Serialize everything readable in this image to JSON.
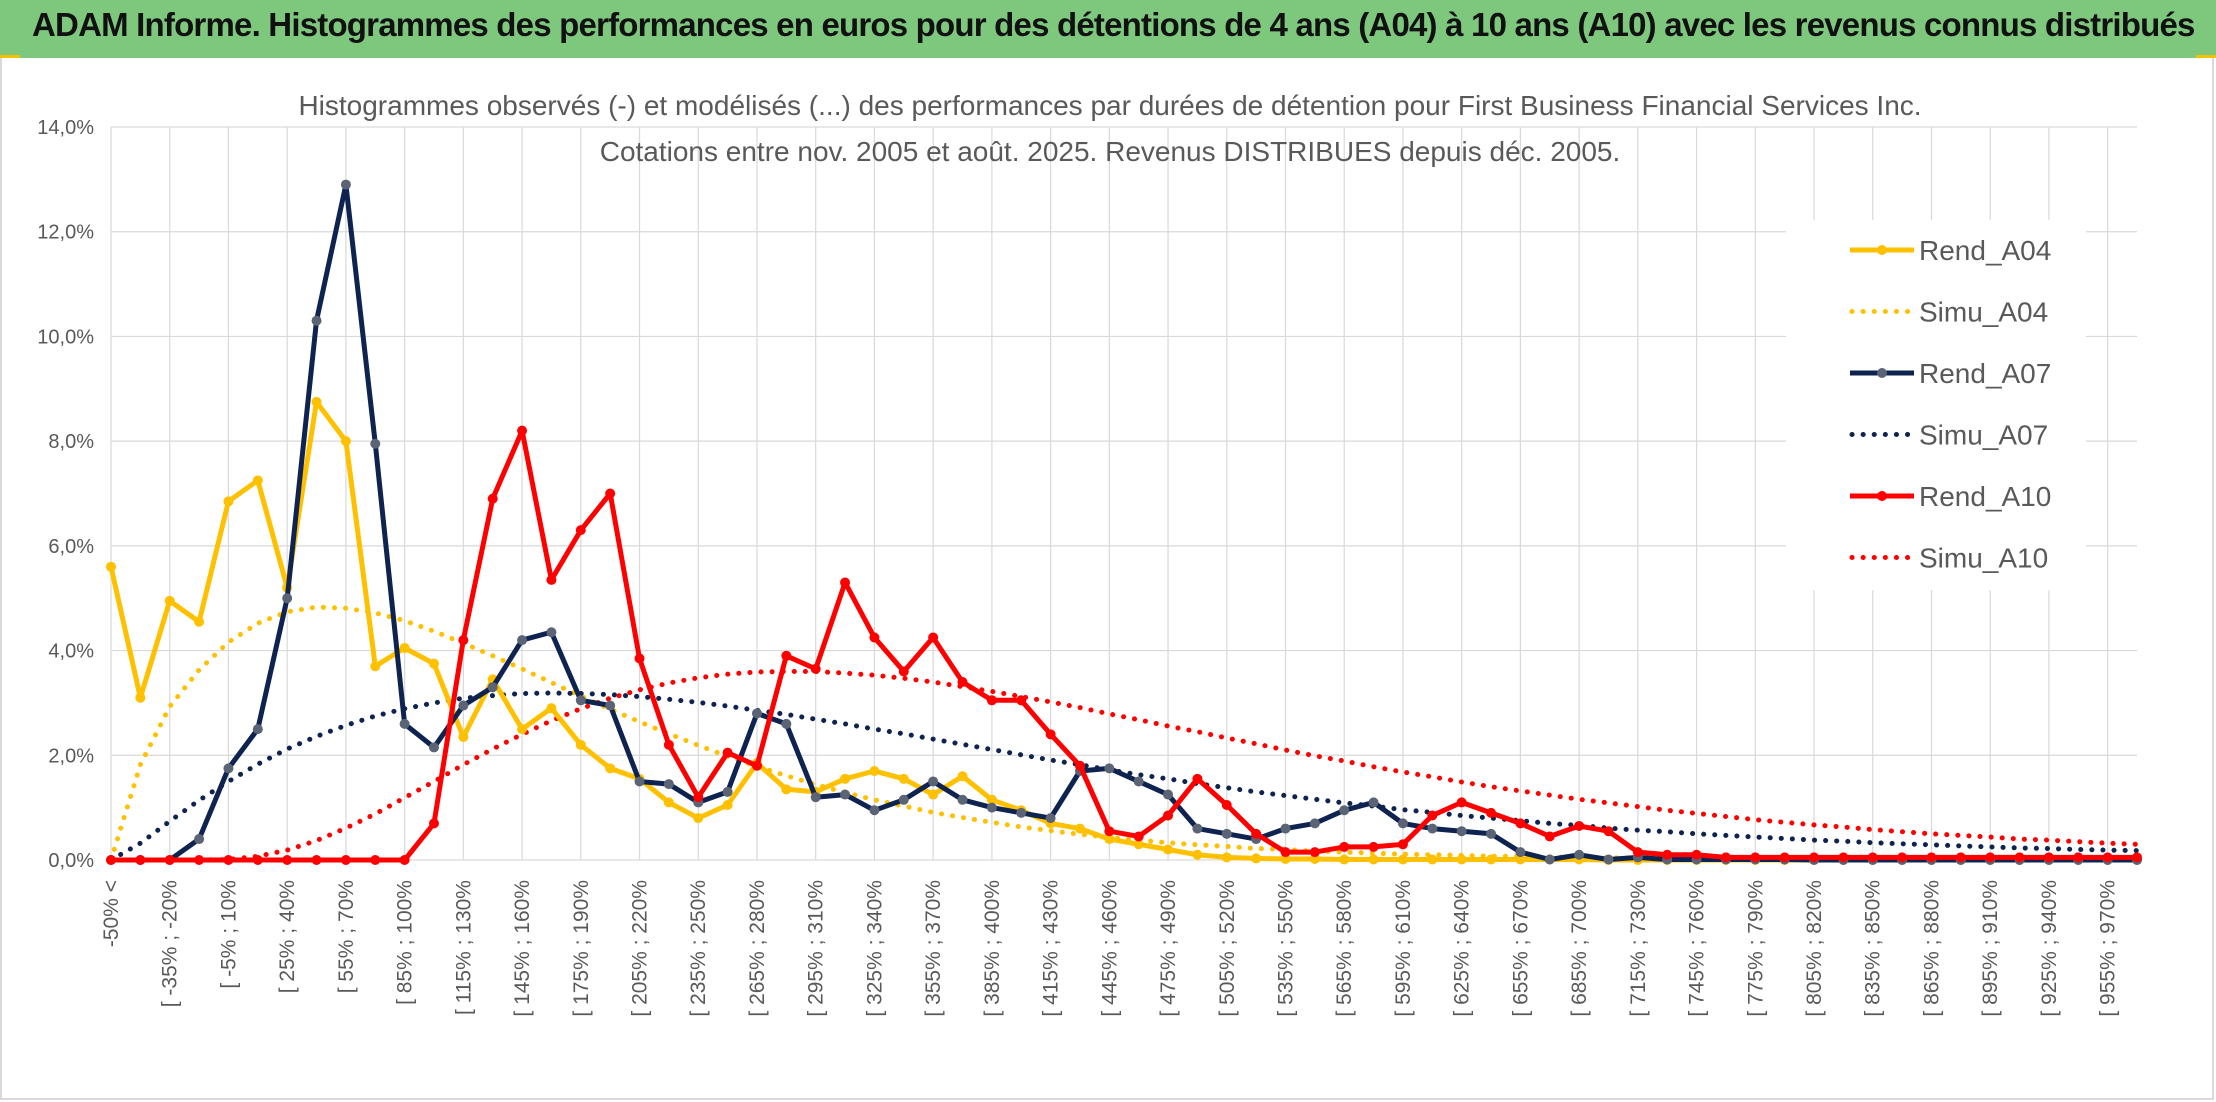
{
  "banner": {
    "title": "ADAM Informe. Histogrammes des performances en euros pour des détentions de 4 ans (A04) à 10 ans (A10) avec les revenus connus distribués"
  },
  "colors": {
    "banner_bg": "#7ec87e",
    "a04": "#ffc000",
    "a07": "#0e2350",
    "a07_marker": "#5a6475",
    "a10": "#ff0000",
    "grid": "#d9d9d9",
    "text": "#595959"
  },
  "chart_data": {
    "type": "line",
    "title": "Histogrammes observés (-) et modélisés (...) des performances par durées de détention pour First Business Financial Services Inc.",
    "subtitle": "Cotations entre nov. 2005 et août. 2025. Revenus DISTRIBUES depuis déc. 2005.",
    "ylim": [
      0,
      0.14
    ],
    "y_ticks": [
      "0,0%",
      "2,0%",
      "4,0%",
      "6,0%",
      "8,0%",
      "10,0%",
      "12,0%",
      "14,0%"
    ],
    "x_labels": [
      "-50% <",
      "[ -35% ; -20%",
      "[ -5% ; 10%",
      "[ 25% ; 40%",
      "[ 55% ; 70%",
      "[ 85% ; 100%",
      "[ 115% ; 130%",
      "[ 145% ; 160%",
      "[ 175% ; 190%",
      "[ 205% ; 220%",
      "[ 235% ; 250%",
      "[ 265% ; 280%",
      "[ 295% ; 310%",
      "[ 325% ; 340%",
      "[ 355% ; 370%",
      "[ 385% ; 400%",
      "[ 415% ; 430%",
      "[ 445% ; 460%",
      "[ 475% ; 490%",
      "[ 505% ; 520%",
      "[ 535% ; 550%",
      "[ 565% ; 580%",
      "[ 595% ; 610%",
      "[ 625% ; 640%",
      "[ 655% ; 670%",
      "[ 685% ; 700%",
      "[ 715% ; 730%",
      "[ 745% ; 760%",
      "[ 775% ; 790%",
      "[ 805% ; 820%",
      "[ 835% ; 850%",
      "[ 865% ; 880%",
      "[ 895% ; 910%",
      "[ 925% ; 940%",
      "[ 955% ; 970%"
    ],
    "grid": true,
    "legend_position": "right",
    "series": [
      {
        "name": "Rend_A04",
        "style": "solid-markers",
        "color": "#ffc000",
        "values": [
          0.056,
          0.031,
          0.0495,
          0.0455,
          0.0685,
          0.0725,
          0.052,
          0.0875,
          0.08,
          0.037,
          0.0405,
          0.0375,
          0.0235,
          0.0345,
          0.025,
          0.029,
          0.022,
          0.0175,
          0.0155,
          0.011,
          0.008,
          0.0105,
          0.0185,
          0.0135,
          0.013,
          0.0155,
          0.017,
          0.0155,
          0.0125,
          0.016,
          0.0115,
          0.0095,
          0.007,
          0.006,
          0.004,
          0.003,
          0.002,
          0.001,
          0.0005,
          0.0003,
          0.0002,
          0.0002,
          0.0001,
          0.0001,
          0.0001,
          0.0001,
          0.0001,
          0.0001,
          0.0001,
          0.0001,
          0.0001,
          0,
          0,
          0,
          0,
          0,
          0,
          0,
          0,
          0,
          0,
          0,
          0,
          0,
          0,
          0,
          0,
          0,
          0,
          0
        ]
      },
      {
        "name": "Simu_A04",
        "style": "dotted",
        "color": "#ffc000",
        "values": [
          0.0,
          0.0182,
          0.0293,
          0.0363,
          0.0416,
          0.0452,
          0.0474,
          0.0483,
          0.0481,
          0.0472,
          0.0457,
          0.0437,
          0.0414,
          0.039,
          0.0365,
          0.0339,
          0.0313,
          0.0288,
          0.0264,
          0.0241,
          0.0219,
          0.0198,
          0.0179,
          0.0161,
          0.0144,
          0.0129,
          0.0115,
          0.0103,
          0.0091,
          0.0081,
          0.0072,
          0.0063,
          0.0056,
          0.0049,
          0.0043,
          0.0038,
          0.0033,
          0.0029,
          0.0026,
          0.0022,
          0.002,
          0.0017,
          0.0015,
          0.0013,
          0.0011,
          0.001,
          0.0009,
          0.0007,
          0.0007,
          0.0006,
          0.0005,
          0.0004,
          0.0004,
          0.0003,
          0.0003,
          0.0002,
          0.0002,
          0.0002,
          0.0002,
          0.0001,
          0.0001,
          0.0001,
          0.0001,
          0.0001,
          0.0001,
          0.0001,
          0.0,
          0.0,
          0.0,
          0.0
        ]
      },
      {
        "name": "Rend_A07",
        "style": "solid-markers",
        "color": "#0e2350",
        "values": [
          0,
          0,
          0,
          0.004,
          0.0175,
          0.025,
          0.05,
          0.103,
          0.129,
          0.0795,
          0.026,
          0.0215,
          0.0295,
          0.033,
          0.042,
          0.0435,
          0.0305,
          0.0295,
          0.015,
          0.0145,
          0.011,
          0.013,
          0.028,
          0.026,
          0.012,
          0.0125,
          0.0095,
          0.0115,
          0.015,
          0.0115,
          0.01,
          0.009,
          0.008,
          0.017,
          0.0175,
          0.015,
          0.0125,
          0.006,
          0.005,
          0.004,
          0.006,
          0.007,
          0.0095,
          0.011,
          0.007,
          0.006,
          0.0055,
          0.005,
          0.0015,
          0.0001,
          0.001,
          0.0001,
          0.0005,
          0.0001,
          0.0001,
          0.0001,
          0.0001,
          0.0001,
          0,
          0,
          0,
          0,
          0,
          0,
          0,
          0,
          0,
          0,
          0,
          0
        ]
      },
      {
        "name": "Simu_A07",
        "style": "dotted",
        "color": "#0e2350",
        "values": [
          0.0,
          0.0032,
          0.0074,
          0.0114,
          0.015,
          0.0183,
          0.0212,
          0.0236,
          0.0257,
          0.0275,
          0.0289,
          0.03,
          0.0309,
          0.0314,
          0.0318,
          0.0319,
          0.0318,
          0.0316,
          0.0312,
          0.0307,
          0.0301,
          0.0294,
          0.0286,
          0.0278,
          0.0269,
          0.026,
          0.025,
          0.0241,
          0.0231,
          0.0221,
          0.0211,
          0.0201,
          0.0191,
          0.0182,
          0.0172,
          0.0163,
          0.0155,
          0.0146,
          0.0138,
          0.013,
          0.0123,
          0.0116,
          0.0109,
          0.0103,
          0.0096,
          0.0091,
          0.0085,
          0.008,
          0.0075,
          0.007,
          0.0066,
          0.0061,
          0.0057,
          0.0054,
          0.005,
          0.0047,
          0.0044,
          0.0041,
          0.0038,
          0.0036,
          0.0033,
          0.0031,
          0.0029,
          0.0027,
          0.0025,
          0.0023,
          0.0022,
          0.002,
          0.0019,
          0.0018
        ]
      },
      {
        "name": "Rend_A10",
        "style": "solid-markers",
        "color": "#ff0000",
        "values": [
          0,
          0,
          0,
          0,
          0,
          0,
          0,
          0,
          0,
          0,
          0,
          0.007,
          0.042,
          0.069,
          0.082,
          0.0535,
          0.063,
          0.07,
          0.0385,
          0.022,
          0.012,
          0.0205,
          0.018,
          0.039,
          0.0365,
          0.053,
          0.0425,
          0.036,
          0.0425,
          0.034,
          0.0305,
          0.0305,
          0.024,
          0.018,
          0.0055,
          0.0045,
          0.0085,
          0.0155,
          0.0105,
          0.005,
          0.0015,
          0.0015,
          0.0025,
          0.0025,
          0.003,
          0.0085,
          0.011,
          0.009,
          0.007,
          0.0045,
          0.0065,
          0.0055,
          0.0015,
          0.001,
          0.001,
          0.0005,
          0.0005,
          0.0005,
          0.0005,
          0.0005,
          0.0005,
          0.0005,
          0.0005,
          0.0005,
          0.0005,
          0.0005,
          0.0005,
          0.0005,
          0.0005,
          0.0005
        ]
      },
      {
        "name": "Simu_A10",
        "style": "dotted",
        "color": "#ff0000",
        "values": [
          0.0,
          0.0,
          0.0,
          0.0,
          0.0001,
          0.0007,
          0.0019,
          0.0037,
          0.0061,
          0.0088,
          0.0119,
          0.015,
          0.0182,
          0.0212,
          0.024,
          0.0266,
          0.0289,
          0.0309,
          0.0325,
          0.0338,
          0.0348,
          0.0355,
          0.0359,
          0.036,
          0.036,
          0.0357,
          0.0353,
          0.0347,
          0.034,
          0.0331,
          0.0322,
          0.0312,
          0.0302,
          0.0291,
          0.0279,
          0.0268,
          0.0256,
          0.0245,
          0.0233,
          0.0222,
          0.021,
          0.0199,
          0.0189,
          0.0178,
          0.0168,
          0.0159,
          0.0149,
          0.014,
          0.0132,
          0.0124,
          0.0116,
          0.0109,
          0.0102,
          0.0095,
          0.0089,
          0.0083,
          0.0077,
          0.0072,
          0.0067,
          0.0063,
          0.0058,
          0.0054,
          0.005,
          0.0047,
          0.0044,
          0.004,
          0.0038,
          0.0035,
          0.0032,
          0.003
        ]
      }
    ]
  }
}
